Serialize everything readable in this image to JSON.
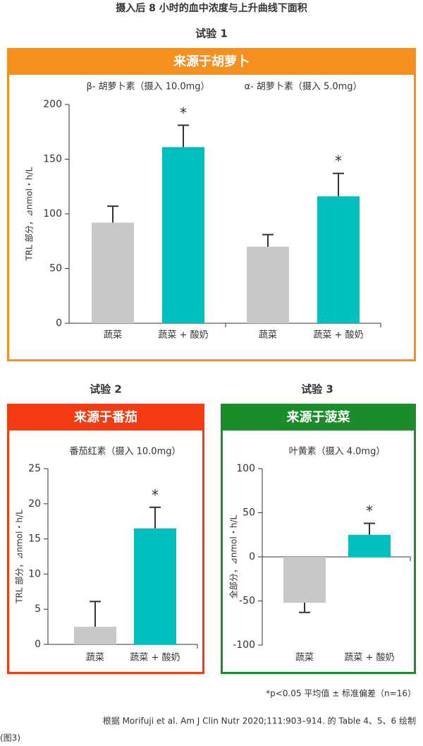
{
  "title": "摄入后 8 小时的血中浓度与上升曲线下面积",
  "footnote": "*p<0.05 平均值 ± 标准偏差（n=16）",
  "source": "根据 Morifuji et al. Am J Clin Nutr 2020;111:903–914. 的 Table 4、5、6 绘制",
  "figure_label": "(图3)",
  "chart_data": [
    {
      "type": "bar",
      "trial": "试验 1",
      "header": "来源于胡萝卜",
      "header_color": "#f5901e",
      "colors": [
        "#c8c8c8",
        "#00bfbf"
      ],
      "ylabel": "TRL 部分，⊿nmol・h/L",
      "ylim": [
        0,
        200
      ],
      "yticks": [
        0,
        50,
        100,
        150,
        200
      ],
      "groups": [
        {
          "label": "β- 胡萝卜素（摄入 10.0mg）",
          "categories": [
            "蔬菜",
            "蔬菜 + 酸奶"
          ],
          "values": [
            92,
            161
          ],
          "errors": [
            15,
            20
          ],
          "annotations": [
            null,
            "*"
          ]
        },
        {
          "label": "α- 胡萝卜素（摄入 5.0mg）",
          "categories": [
            "蔬菜",
            "蔬菜 + 酸奶"
          ],
          "values": [
            70,
            116
          ],
          "errors": [
            11,
            21
          ],
          "annotations": [
            null,
            "*"
          ]
        }
      ]
    },
    {
      "type": "bar",
      "trial": "试验 2",
      "header": "来源于番茄",
      "header_color": "#f53b11",
      "colors": [
        "#c8c8c8",
        "#00bfbf"
      ],
      "ylabel": "TRL 部分，⊿nmol・h/L",
      "ylim": [
        0,
        25
      ],
      "yticks": [
        0,
        5,
        10,
        15,
        20,
        25
      ],
      "groups": [
        {
          "label": "番茄红素（摄入 10.0mg）",
          "categories": [
            "蔬菜",
            "蔬菜 + 酸奶"
          ],
          "values": [
            2.5,
            16.5
          ],
          "errors": [
            3.6,
            3.0
          ],
          "annotations": [
            null,
            "*"
          ]
        }
      ]
    },
    {
      "type": "bar",
      "trial": "试验 3",
      "header": "来源于菠菜",
      "header_color": "#1a8c2a",
      "colors": [
        "#c8c8c8",
        "#00bfbf"
      ],
      "ylabel": "全部分，⊿nmol・h/L",
      "ylim": [
        -100,
        100
      ],
      "yticks": [
        -100,
        -50,
        0,
        50,
        100
      ],
      "groups": [
        {
          "label": "叶黄素（摄入 4.0mg）",
          "categories": [
            "蔬菜",
            "蔬菜 + 酸奶"
          ],
          "values": [
            -52,
            25
          ],
          "errors": [
            11,
            13
          ],
          "annotations": [
            null,
            "*"
          ]
        }
      ]
    }
  ]
}
